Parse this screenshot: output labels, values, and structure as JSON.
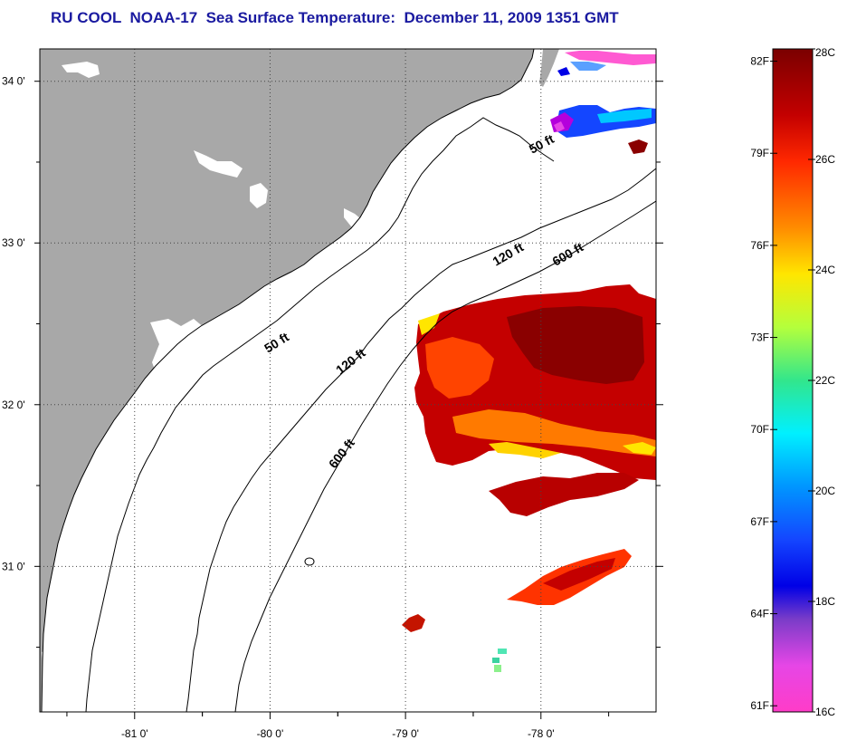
{
  "title": "RU COOL  NOAA-17  Sea Surface Temperature:  December 11, 2009 1351 GMT",
  "colors": {
    "land": "#a8a8a8",
    "grid": "#444444",
    "sst_warm": "#c40000",
    "sst_hot": "#8a0000",
    "sst_orange": "#ff5a00"
  },
  "map": {
    "lon_range": [
      -81.7,
      -77.15
    ],
    "lat_range": [
      30.1,
      34.2
    ],
    "lat_ticks": [
      {
        "value": 34,
        "label": "34 0'"
      },
      {
        "value": 33,
        "label": "33 0'"
      },
      {
        "value": 32,
        "label": "32 0'"
      },
      {
        "value": 31,
        "label": "31 0'"
      }
    ],
    "lon_ticks": [
      {
        "value": -81,
        "label": "-81 0'"
      },
      {
        "value": -80,
        "label": "-80 0'"
      },
      {
        "value": -79,
        "label": "-79 0'"
      },
      {
        "value": -78,
        "label": "-78 0'"
      }
    ],
    "contour_labels": [
      {
        "text": "50 ft"
      },
      {
        "text": "50 ft"
      },
      {
        "text": "120 ft"
      },
      {
        "text": "120 ft"
      },
      {
        "text": "600 ft"
      },
      {
        "text": "600 ft"
      }
    ]
  },
  "colorbar": {
    "celsius_range": [
      16,
      28
    ],
    "celsius_ticks": [
      {
        "value": 28,
        "label": "28C"
      },
      {
        "value": 26,
        "label": "26C"
      },
      {
        "value": 24,
        "label": "24C"
      },
      {
        "value": 22,
        "label": "22C"
      },
      {
        "value": 20,
        "label": "20C"
      },
      {
        "value": 18,
        "label": "18C"
      },
      {
        "value": 16,
        "label": "16C"
      }
    ],
    "fahrenheit_ticks": [
      {
        "value": 82,
        "label": "82F"
      },
      {
        "value": 79,
        "label": "79F"
      },
      {
        "value": 76,
        "label": "76F"
      },
      {
        "value": 73,
        "label": "73F"
      },
      {
        "value": 70,
        "label": "70F"
      },
      {
        "value": 67,
        "label": "67F"
      },
      {
        "value": 64,
        "label": "64F"
      },
      {
        "value": 61,
        "label": "61F"
      }
    ]
  }
}
